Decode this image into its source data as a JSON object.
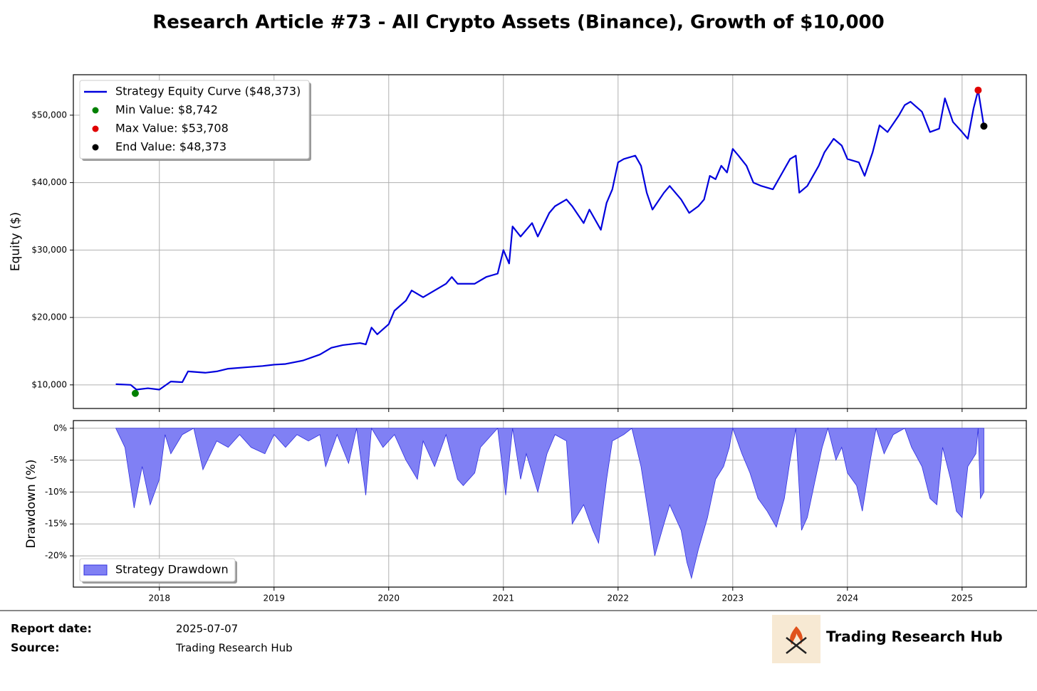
{
  "title": "Research Article #73 - All Crypto Assets (Binance), Growth of $10,000",
  "chart_data": [
    {
      "type": "line",
      "y_label": "Equity ($)",
      "legend": "upper left",
      "grid": true,
      "xlim": [
        2017.25,
        2025.56
      ],
      "xticks": [
        2018,
        2019,
        2020,
        2021,
        2022,
        2023,
        2024,
        2025
      ],
      "ylim": [
        6500,
        56000
      ],
      "yticks": [
        {
          "value": 10000,
          "label": "$10,000"
        },
        {
          "value": 20000,
          "label": "$20,000"
        },
        {
          "value": 30000,
          "label": "$30,000"
        },
        {
          "value": 40000,
          "label": "$40,000"
        },
        {
          "value": 50000,
          "label": "$50,000"
        }
      ],
      "series": [
        {
          "name": "Strategy Equity Curve ($48,373)",
          "color": "#0000dd",
          "x": [
            2017.62,
            2017.75,
            2017.8,
            2017.9,
            2018.0,
            2018.1,
            2018.2,
            2018.25,
            2018.4,
            2018.5,
            2018.6,
            2018.75,
            2018.9,
            2019.0,
            2019.1,
            2019.25,
            2019.4,
            2019.5,
            2019.6,
            2019.75,
            2019.8,
            2019.85,
            2019.9,
            2020.0,
            2020.05,
            2020.15,
            2020.2,
            2020.3,
            2020.4,
            2020.5,
            2020.55,
            2020.6,
            2020.75,
            2020.85,
            2020.95,
            2021.0,
            2021.05,
            2021.08,
            2021.15,
            2021.25,
            2021.3,
            2021.4,
            2021.45,
            2021.55,
            2021.6,
            2021.7,
            2021.75,
            2021.85,
            2021.9,
            2021.95,
            2022.0,
            2022.05,
            2022.15,
            2022.2,
            2022.25,
            2022.3,
            2022.4,
            2022.45,
            2022.5,
            2022.55,
            2022.62,
            2022.7,
            2022.75,
            2022.8,
            2022.85,
            2022.9,
            2022.95,
            2023.0,
            2023.05,
            2023.12,
            2023.18,
            2023.25,
            2023.35,
            2023.4,
            2023.5,
            2023.55,
            2023.58,
            2023.65,
            2023.75,
            2023.8,
            2023.88,
            2023.95,
            2024.0,
            2024.1,
            2024.15,
            2024.22,
            2024.28,
            2024.35,
            2024.45,
            2024.5,
            2024.55,
            2024.65,
            2024.72,
            2024.8,
            2024.85,
            2024.92,
            2025.0,
            2025.05,
            2025.1,
            2025.14,
            2025.19
          ],
          "values": [
            10100,
            10000,
            9300,
            9500,
            9300,
            10500,
            10400,
            12000,
            11800,
            12000,
            12400,
            12600,
            12800,
            13000,
            13100,
            13600,
            14500,
            15500,
            15900,
            16200,
            16000,
            18500,
            17500,
            19000,
            21000,
            22500,
            24000,
            23000,
            24000,
            25000,
            26000,
            25000,
            25000,
            26000,
            26500,
            30000,
            28000,
            33500,
            32000,
            34000,
            32000,
            35500,
            36500,
            37500,
            36500,
            34000,
            36000,
            33000,
            37000,
            39000,
            43000,
            43500,
            44000,
            42500,
            38500,
            36000,
            38500,
            39500,
            38500,
            37500,
            35500,
            36500,
            37500,
            41000,
            40500,
            42500,
            41500,
            45000,
            44000,
            42500,
            40000,
            39500,
            39000,
            40500,
            43500,
            44000,
            38500,
            39500,
            42500,
            44500,
            46500,
            45500,
            43500,
            43000,
            41000,
            44500,
            48500,
            47500,
            50000,
            51500,
            52000,
            50500,
            47500,
            48000,
            52500,
            49000,
            47500,
            46500,
            51000,
            53708,
            48373
          ]
        }
      ],
      "points": [
        {
          "name": "Min Value: $8,742",
          "color": "#008000",
          "x": [
            2017.79
          ],
          "values": [
            8742
          ]
        },
        {
          "name": "Max Value: $53,708",
          "color": "#e00000",
          "x": [
            2025.14
          ],
          "values": [
            53708
          ]
        },
        {
          "name": "End Value: $48,373",
          "color": "#000000",
          "x": [
            2025.19
          ],
          "values": [
            48373
          ]
        }
      ]
    },
    {
      "type": "area",
      "y_label": "Drawdown (%)",
      "legend": "lower left",
      "grid": true,
      "xlim": [
        2017.25,
        2025.56
      ],
      "xticks": [
        2018,
        2019,
        2020,
        2021,
        2022,
        2023,
        2024,
        2025
      ],
      "ylim": [
        -24.9,
        1.2
      ],
      "yticks": [
        {
          "value": 0,
          "label": "0%"
        },
        {
          "value": -5,
          "label": "-5%"
        },
        {
          "value": -10,
          "label": "-10%"
        },
        {
          "value": -15,
          "label": "-15%"
        },
        {
          "value": -20,
          "label": "-20%"
        }
      ],
      "series": [
        {
          "name": "Strategy Drawdown",
          "color": "#8080f4",
          "x": [
            2017.62,
            2017.7,
            2017.78,
            2017.85,
            2017.92,
            2018.0,
            2018.05,
            2018.1,
            2018.2,
            2018.3,
            2018.38,
            2018.5,
            2018.6,
            2018.7,
            2018.8,
            2018.92,
            2019.0,
            2019.1,
            2019.2,
            2019.3,
            2019.4,
            2019.45,
            2019.55,
            2019.65,
            2019.72,
            2019.8,
            2019.85,
            2019.95,
            2020.05,
            2020.15,
            2020.25,
            2020.3,
            2020.4,
            2020.5,
            2020.6,
            2020.65,
            2020.75,
            2020.8,
            2020.95,
            2021.02,
            2021.08,
            2021.15,
            2021.2,
            2021.3,
            2021.38,
            2021.45,
            2021.55,
            2021.6,
            2021.7,
            2021.78,
            2021.83,
            2021.9,
            2021.95,
            2022.05,
            2022.12,
            2022.2,
            2022.27,
            2022.32,
            2022.4,
            2022.45,
            2022.55,
            2022.6,
            2022.64,
            2022.7,
            2022.78,
            2022.85,
            2022.92,
            2022.97,
            2023.0,
            2023.08,
            2023.15,
            2023.22,
            2023.3,
            2023.38,
            2023.45,
            2023.5,
            2023.55,
            2023.6,
            2023.65,
            2023.72,
            2023.78,
            2023.83,
            2023.9,
            2023.95,
            2024.0,
            2024.08,
            2024.13,
            2024.2,
            2024.25,
            2024.32,
            2024.4,
            2024.5,
            2024.56,
            2024.65,
            2024.72,
            2024.78,
            2024.83,
            2024.9,
            2024.95,
            2025.0,
            2025.05,
            2025.12,
            2025.14,
            2025.16,
            2025.19
          ],
          "values": [
            0,
            -3,
            -12.5,
            -6,
            -12,
            -8,
            -1,
            -4,
            -1,
            0,
            -6.5,
            -2,
            -3,
            -1,
            -3,
            -4,
            -1,
            -3,
            -1,
            -2,
            -1,
            -6,
            -1,
            -5.5,
            0,
            -10.5,
            0,
            -3,
            -1,
            -5,
            -8,
            -2,
            -6,
            -1,
            -8,
            -9,
            -7,
            -3,
            0,
            -10.5,
            0,
            -8,
            -4,
            -10,
            -4,
            -1,
            -2,
            -15,
            -12,
            -16,
            -18,
            -8,
            -2,
            -1,
            0,
            -6,
            -14,
            -20,
            -15,
            -12,
            -16,
            -21,
            -23.5,
            -19,
            -14,
            -8,
            -6,
            -3,
            0,
            -4,
            -7,
            -11,
            -13,
            -15.5,
            -11,
            -5,
            0,
            -16,
            -14,
            -8,
            -3,
            0,
            -5,
            -3,
            -7,
            -9,
            -13,
            -5,
            0,
            -4,
            -1,
            0,
            -3,
            -6,
            -11,
            -12,
            -3,
            -8,
            -13,
            -14,
            -6,
            -4,
            0,
            -11,
            -10
          ]
        }
      ]
    }
  ],
  "footer": {
    "report_date_label": "Report date:",
    "report_date": "2025-07-07",
    "source_label": "Source:",
    "source": "Trading Research Hub",
    "logo_text": "Trading Research Hub"
  }
}
